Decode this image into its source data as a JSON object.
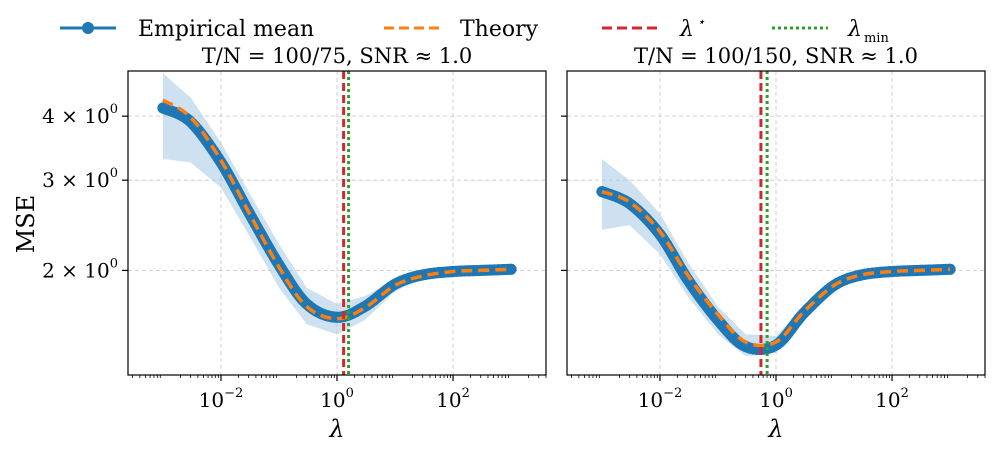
{
  "legend": {
    "empirical": "Empirical mean",
    "theory": "Theory",
    "lambda_star": "λ",
    "lambda_star_sup": "⋆",
    "lambda_min": "λ",
    "lambda_min_sub": "min"
  },
  "colors": {
    "empirical": "#1f77b4",
    "band": "#a6c8e6",
    "theory": "#ff7f0e",
    "lambda_star": "#d62728",
    "lambda_min": "#2ca02c"
  },
  "chart_data": [
    {
      "type": "line",
      "title": "T/N = 100/75,  SNR ≈ 1.0",
      "xlabel": "λ",
      "ylabel": "MSE",
      "xscale": "log",
      "yscale": "log",
      "xlim": [
        0.00025,
        4000
      ],
      "ylim": [
        1.25,
        4.9
      ],
      "x_ticks": [
        {
          "base": "10",
          "exp": "−2",
          "value": 0.01
        },
        {
          "base": "10",
          "exp": "0",
          "value": 1
        },
        {
          "base": "10",
          "exp": "2",
          "value": 100
        }
      ],
      "y_ticks": [
        {
          "mant": "4 × 10",
          "exp": "0",
          "value": 4
        },
        {
          "mant": "3 × 10",
          "exp": "0",
          "value": 3
        },
        {
          "mant": "2 × 10",
          "exp": "0",
          "value": 2
        }
      ],
      "lambda_star": 1.3,
      "lambda_min": 1.35,
      "series": [
        {
          "name": "Empirical mean",
          "x": [
            0.001,
            0.003,
            0.01,
            0.03,
            0.1,
            0.3,
            1,
            3,
            10,
            30,
            100,
            300,
            1000
          ],
          "y": [
            4.15,
            3.9,
            3.25,
            2.6,
            2.05,
            1.72,
            1.62,
            1.7,
            1.88,
            1.96,
            1.99,
            2.0,
            2.01
          ]
        },
        {
          "name": "Theory",
          "x": [
            0.001,
            0.003,
            0.01,
            0.03,
            0.1,
            0.3,
            1,
            3,
            10,
            30,
            100,
            300,
            1000
          ],
          "y": [
            4.3,
            3.98,
            3.28,
            2.6,
            2.03,
            1.7,
            1.61,
            1.69,
            1.87,
            1.95,
            1.99,
            2.0,
            2.01
          ]
        },
        {
          "name": "band_upper",
          "x": [
            0.001,
            0.003,
            0.01,
            0.03,
            0.1,
            0.3,
            1,
            3,
            10,
            30,
            100,
            300,
            1000
          ],
          "y": [
            4.85,
            4.35,
            3.55,
            2.85,
            2.25,
            1.85,
            1.72,
            1.78,
            1.92,
            1.98,
            2.0,
            2.01,
            2.02
          ]
        },
        {
          "name": "band_lower",
          "x": [
            0.001,
            0.003,
            0.01,
            0.03,
            0.1,
            0.3,
            1,
            3,
            10,
            30,
            100,
            300,
            1000
          ],
          "y": [
            3.3,
            3.25,
            2.9,
            2.35,
            1.85,
            1.57,
            1.5,
            1.6,
            1.82,
            1.93,
            1.98,
            1.99,
            2.0
          ]
        }
      ]
    },
    {
      "type": "line",
      "title": "T/N = 100/150,  SNR ≈ 1.0",
      "xlabel": "λ",
      "ylabel": "",
      "xscale": "log",
      "yscale": "log",
      "xlim": [
        0.00025,
        4000
      ],
      "ylim": [
        1.25,
        4.9
      ],
      "x_ticks": [
        {
          "base": "10",
          "exp": "−2",
          "value": 0.01
        },
        {
          "base": "10",
          "exp": "0",
          "value": 1
        },
        {
          "base": "10",
          "exp": "2",
          "value": 100
        }
      ],
      "y_ticks": [],
      "lambda_star": 0.55,
      "lambda_min": 0.6,
      "series": [
        {
          "name": "Empirical mean",
          "x": [
            0.001,
            0.003,
            0.01,
            0.03,
            0.1,
            0.3,
            1,
            3,
            10,
            30,
            100,
            300,
            1000
          ],
          "y": [
            2.85,
            2.7,
            2.35,
            1.92,
            1.6,
            1.42,
            1.43,
            1.65,
            1.87,
            1.96,
            1.99,
            2.0,
            2.01
          ]
        },
        {
          "name": "Theory",
          "x": [
            0.001,
            0.003,
            0.01,
            0.03,
            0.1,
            0.3,
            1,
            3,
            10,
            30,
            100,
            300,
            1000
          ],
          "y": [
            2.85,
            2.72,
            2.38,
            1.96,
            1.64,
            1.45,
            1.45,
            1.66,
            1.87,
            1.96,
            1.99,
            2.0,
            2.01
          ]
        },
        {
          "name": "band_upper",
          "x": [
            0.001,
            0.003,
            0.01,
            0.03,
            0.1,
            0.3,
            1,
            3,
            10,
            30,
            100,
            300,
            1000
          ],
          "y": [
            3.3,
            3.0,
            2.58,
            2.08,
            1.7,
            1.5,
            1.49,
            1.69,
            1.89,
            1.97,
            2.0,
            2.01,
            2.02
          ]
        },
        {
          "name": "band_lower",
          "x": [
            0.001,
            0.003,
            0.01,
            0.03,
            0.1,
            0.3,
            1,
            3,
            10,
            30,
            100,
            300,
            1000
          ],
          "y": [
            2.4,
            2.45,
            2.15,
            1.78,
            1.5,
            1.36,
            1.38,
            1.61,
            1.85,
            1.95,
            1.98,
            1.99,
            2.0
          ]
        }
      ]
    }
  ]
}
